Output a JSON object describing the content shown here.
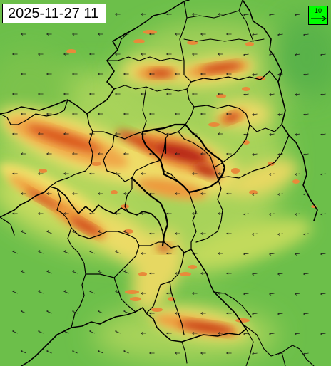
{
  "timestamp": "2025-11-27 11",
  "legend": {
    "value": "10",
    "icon": "wind-arrow-icon",
    "background_color": "#00ff00"
  },
  "map": {
    "field_colors": {
      "calm": "#5fb94a",
      "low": "#9fd05a",
      "moderate": "#f2e06a",
      "high": "#f0a040",
      "very_high": "#d9531e",
      "extreme": "#a81e10"
    },
    "wind_vector_color": "#1a1a1a",
    "border_color": "#000000"
  }
}
